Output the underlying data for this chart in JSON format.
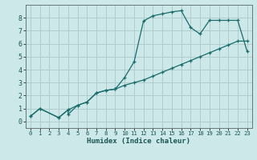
{
  "xlabel": "Humidex (Indice chaleur)",
  "bg_color": "#cce8e8",
  "grid_color": "#b0cccc",
  "line_color": "#1a6b6b",
  "xlim": [
    -0.5,
    23.5
  ],
  "ylim": [
    -0.5,
    9.0
  ],
  "xticks": [
    0,
    1,
    2,
    3,
    4,
    5,
    6,
    7,
    8,
    9,
    10,
    11,
    12,
    13,
    14,
    15,
    16,
    17,
    18,
    19,
    20,
    21,
    22,
    23
  ],
  "yticks": [
    0,
    1,
    2,
    3,
    4,
    5,
    6,
    7,
    8
  ],
  "curve1_x": [
    0,
    1,
    3,
    4,
    4,
    5,
    6,
    7,
    8,
    9,
    10,
    11,
    12,
    13,
    14,
    15,
    16,
    17,
    18,
    19,
    20,
    21,
    22,
    23
  ],
  "curve1_y": [
    0.4,
    1.0,
    0.3,
    0.9,
    0.55,
    1.25,
    1.5,
    2.2,
    2.4,
    2.5,
    3.4,
    4.6,
    7.75,
    8.15,
    8.3,
    8.45,
    8.55,
    7.25,
    6.75,
    7.8,
    7.8,
    7.8,
    7.8,
    5.4
  ],
  "curve2_x": [
    0,
    1,
    3,
    4,
    5,
    6,
    7,
    8,
    9,
    10,
    11,
    12,
    13,
    14,
    15,
    16,
    17,
    18,
    19,
    20,
    21,
    22,
    23
  ],
  "curve2_y": [
    0.4,
    1.0,
    0.3,
    0.9,
    1.25,
    1.5,
    2.2,
    2.4,
    2.5,
    2.8,
    3.0,
    3.2,
    3.5,
    3.8,
    4.1,
    4.4,
    4.7,
    5.0,
    5.3,
    5.6,
    5.9,
    6.2,
    6.2
  ]
}
